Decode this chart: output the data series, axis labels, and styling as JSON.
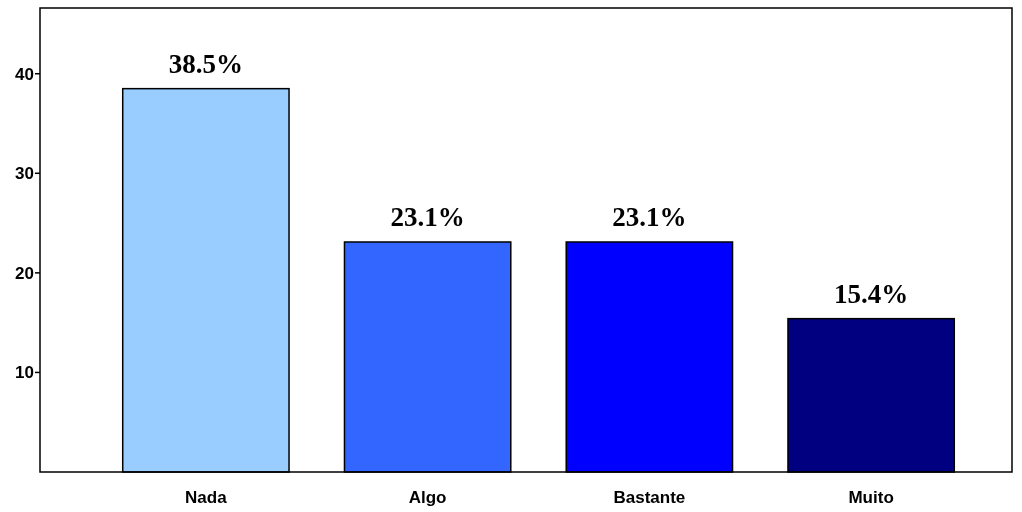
{
  "chart_data": {
    "type": "bar",
    "categories": [
      "Nada",
      "Algo",
      "Bastante",
      "Muito"
    ],
    "values": [
      38.5,
      23.1,
      23.1,
      15.4
    ],
    "colors": [
      "#99ccff",
      "#3366ff",
      "#0000ff",
      "#000080"
    ],
    "value_labels": [
      "38.5%",
      "23.1%",
      "23.1%",
      "15.4%"
    ],
    "ylim": [
      0,
      46.6
    ],
    "yticks": [
      10,
      20,
      30,
      40
    ],
    "grid": false
  }
}
